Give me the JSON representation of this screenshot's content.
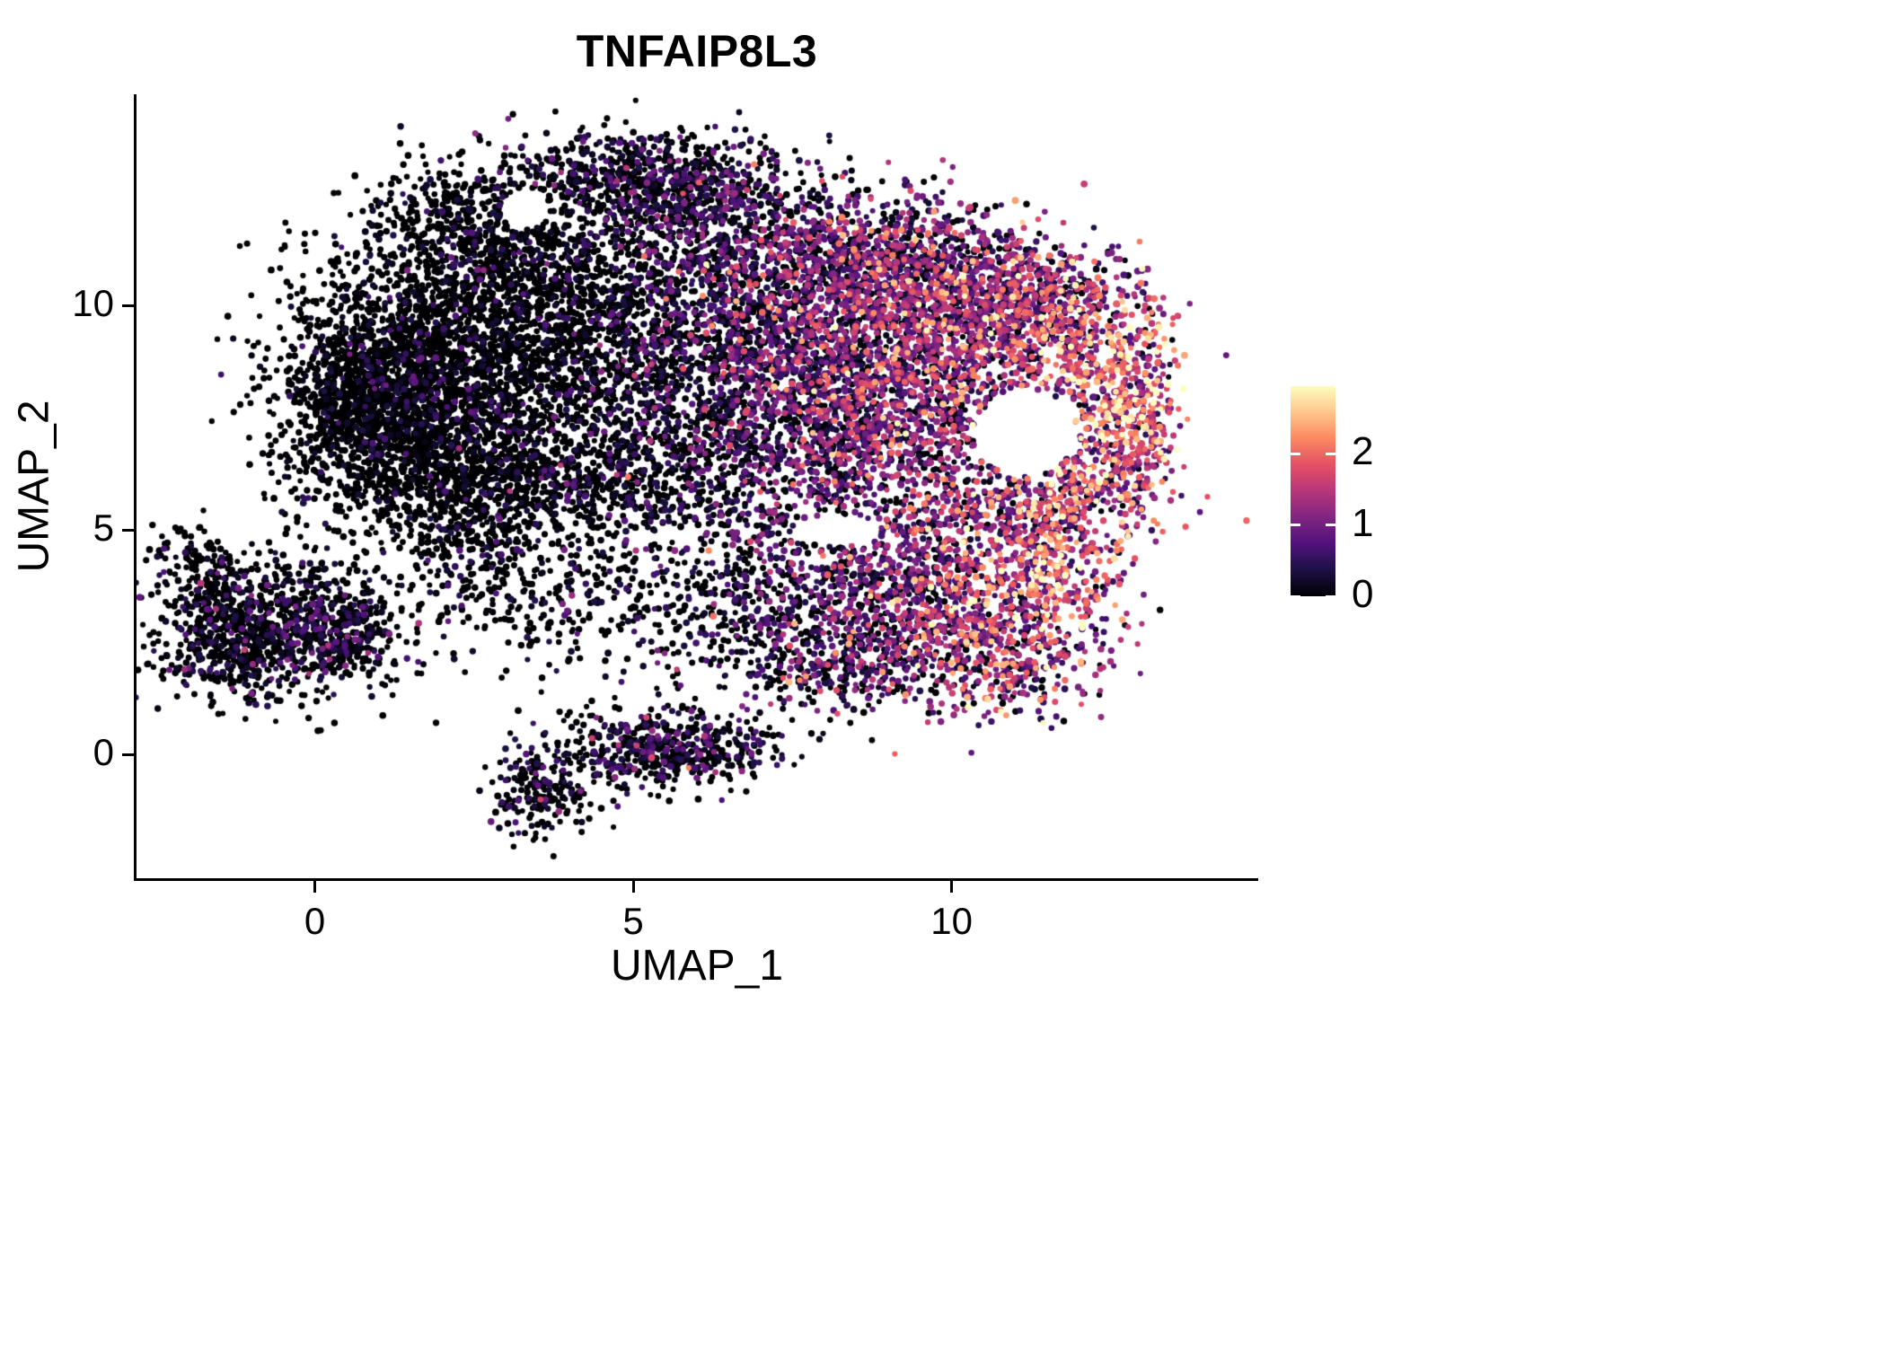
{
  "chart_data": {
    "type": "scatter",
    "title": "TNFAIP8L3",
    "xlabel": "UMAP_1",
    "ylabel": "UMAP_2",
    "xlim": [
      -2.8,
      14.8
    ],
    "ylim": [
      -2.75,
      14.7
    ],
    "grid": false,
    "background": "#ffffff",
    "axis_color": "#000000",
    "x_ticks": [
      {
        "value": 0,
        "label": "0"
      },
      {
        "value": 5,
        "label": "5"
      },
      {
        "value": 10,
        "label": "10"
      }
    ],
    "y_ticks": [
      {
        "value": 0,
        "label": "0"
      },
      {
        "value": 5,
        "label": "5"
      },
      {
        "value": 10,
        "label": "10"
      }
    ],
    "colorbar": {
      "min": 0,
      "max": 2.95,
      "position": "right",
      "ticks": [
        {
          "value": 0,
          "label": "0"
        },
        {
          "value": 1,
          "label": "1"
        },
        {
          "value": 2,
          "label": "2"
        }
      ]
    },
    "palette": {
      "name": "magma",
      "stops": [
        {
          "t": 0.0,
          "c": "#000004"
        },
        {
          "t": 0.13,
          "c": "#1d1147"
        },
        {
          "t": 0.25,
          "c": "#51127c"
        },
        {
          "t": 0.38,
          "c": "#822681"
        },
        {
          "t": 0.5,
          "c": "#b63679"
        },
        {
          "t": 0.63,
          "c": "#e65164"
        },
        {
          "t": 0.75,
          "c": "#fb8861"
        },
        {
          "t": 0.88,
          "c": "#fec98d"
        },
        {
          "t": 1.0,
          "c": "#fcfdbf"
        }
      ]
    },
    "seed": 42,
    "point_radius_min": 3.0,
    "point_radius_max": 3.9,
    "clusters": [
      {
        "x": 1.3,
        "y": 8.4,
        "sx": 0.95,
        "sy": 1.5,
        "n": 1500,
        "m": -0.5,
        "s": 0.55
      },
      {
        "x": 0.8,
        "y": 7.8,
        "sx": 0.55,
        "sy": 0.9,
        "n": 500,
        "m": -0.55,
        "s": 0.45
      },
      {
        "x": 2.6,
        "y": 7.0,
        "sx": 1.1,
        "sy": 1.1,
        "n": 800,
        "m": -0.45,
        "s": 0.5
      },
      {
        "x": 3.1,
        "y": 9.8,
        "sx": 1.1,
        "sy": 1.0,
        "n": 700,
        "m": -0.45,
        "s": 0.5
      },
      {
        "x": 4.5,
        "y": 8.4,
        "sx": 1.2,
        "sy": 1.4,
        "n": 800,
        "m": -0.3,
        "s": 0.55
      },
      {
        "x": 2.3,
        "y": 12.0,
        "sx": 0.8,
        "sy": 0.6,
        "n": 300,
        "m": -0.45,
        "s": 0.5
      },
      {
        "x": 3.1,
        "y": 11.0,
        "sx": 0.7,
        "sy": 0.6,
        "n": 250,
        "m": -0.4,
        "s": 0.5
      },
      {
        "x": 4.5,
        "y": 12.9,
        "sx": 0.9,
        "sy": 0.5,
        "n": 400,
        "m": -0.2,
        "s": 0.6
      },
      {
        "x": 6.0,
        "y": 12.7,
        "sx": 0.9,
        "sy": 0.55,
        "n": 380,
        "m": 0.1,
        "s": 0.65
      },
      {
        "x": 5.7,
        "y": 11.0,
        "sx": 1.1,
        "sy": 0.9,
        "n": 450,
        "m": -0.15,
        "s": 0.6
      },
      {
        "x": 6.4,
        "y": 9.2,
        "sx": 1.0,
        "sy": 1.1,
        "n": 500,
        "m": 0.15,
        "s": 0.65
      },
      {
        "x": 6.1,
        "y": 6.6,
        "sx": 1.2,
        "sy": 1.0,
        "n": 480,
        "m": 0.0,
        "s": 0.6
      },
      {
        "x": 4.4,
        "y": 5.8,
        "sx": 1.3,
        "sy": 0.7,
        "n": 380,
        "m": -0.3,
        "s": 0.5
      },
      {
        "x": 1.9,
        "y": 5.9,
        "sx": 0.9,
        "sy": 0.6,
        "n": 260,
        "m": -0.45,
        "s": 0.45
      },
      {
        "x": 7.9,
        "y": 9.0,
        "sx": 1.0,
        "sy": 1.3,
        "n": 850,
        "m": 0.65,
        "s": 0.75
      },
      {
        "x": 8.1,
        "y": 6.8,
        "sx": 1.0,
        "sy": 1.0,
        "n": 520,
        "m": 0.5,
        "s": 0.7
      },
      {
        "x": 9.4,
        "y": 9.4,
        "sx": 1.0,
        "sy": 1.1,
        "n": 750,
        "m": 0.9,
        "s": 0.8
      },
      {
        "x": 9.6,
        "y": 7.2,
        "sx": 0.9,
        "sy": 0.9,
        "n": 420,
        "m": 0.7,
        "s": 0.8
      },
      {
        "x": 10.8,
        "y": 9.7,
        "sx": 0.9,
        "sy": 0.8,
        "n": 480,
        "m": 1.0,
        "s": 0.8
      },
      {
        "x": 11.9,
        "y": 8.9,
        "sx": 0.75,
        "sy": 0.9,
        "n": 380,
        "m": 1.4,
        "s": 0.85
      },
      {
        "x": 12.9,
        "y": 7.5,
        "sx": 0.35,
        "sy": 0.95,
        "n": 300,
        "m": 1.7,
        "s": 0.8
      },
      {
        "x": 12.3,
        "y": 6.3,
        "sx": 0.6,
        "sy": 0.6,
        "n": 200,
        "m": 1.4,
        "s": 0.9
      },
      {
        "x": 11.5,
        "y": 5.6,
        "sx": 0.8,
        "sy": 0.6,
        "n": 220,
        "m": 1.0,
        "s": 0.9
      },
      {
        "x": 10.3,
        "y": 5.4,
        "sx": 0.9,
        "sy": 0.55,
        "n": 200,
        "m": 0.7,
        "s": 0.8
      },
      {
        "x": 7.2,
        "y": 11.4,
        "sx": 1.1,
        "sy": 0.8,
        "n": 420,
        "m": 0.35,
        "s": 0.7
      },
      {
        "x": 8.8,
        "y": 11.2,
        "sx": 1.0,
        "sy": 0.7,
        "n": 380,
        "m": 0.55,
        "s": 0.75
      },
      {
        "x": 10.2,
        "y": 10.9,
        "sx": 0.9,
        "sy": 0.6,
        "n": 280,
        "m": 0.7,
        "s": 0.8
      },
      {
        "x": 11.4,
        "y": 10.4,
        "sx": 0.7,
        "sy": 0.5,
        "n": 180,
        "m": 0.9,
        "s": 0.85
      },
      {
        "x": 9.2,
        "y": 3.1,
        "sx": 1.0,
        "sy": 0.95,
        "n": 420,
        "m": 0.55,
        "s": 0.8
      },
      {
        "x": 10.6,
        "y": 3.0,
        "sx": 0.9,
        "sy": 0.9,
        "n": 450,
        "m": 1.2,
        "s": 0.9
      },
      {
        "x": 11.6,
        "y": 4.2,
        "sx": 0.7,
        "sy": 0.8,
        "n": 300,
        "m": 1.5,
        "s": 0.9
      },
      {
        "x": 10.9,
        "y": 1.9,
        "sx": 0.8,
        "sy": 0.5,
        "n": 180,
        "m": 0.9,
        "s": 0.9
      },
      {
        "x": 8.3,
        "y": 2.0,
        "sx": 0.8,
        "sy": 0.6,
        "n": 230,
        "m": 0.3,
        "s": 0.7
      },
      {
        "x": 7.7,
        "y": 3.5,
        "sx": 0.8,
        "sy": 0.8,
        "n": 260,
        "m": 0.25,
        "s": 0.65
      },
      {
        "x": 8.9,
        "y": 4.6,
        "sx": 0.8,
        "sy": 0.5,
        "n": 160,
        "m": 0.6,
        "s": 0.8
      },
      {
        "x": 5.5,
        "y": 3.6,
        "sx": 1.5,
        "sy": 0.8,
        "n": 260,
        "m": -0.2,
        "s": 0.55
      },
      {
        "x": 3.1,
        "y": 3.4,
        "sx": 1.1,
        "sy": 0.8,
        "n": 170,
        "m": -0.35,
        "s": 0.5
      },
      {
        "x": 6.8,
        "y": 2.3,
        "sx": 1.0,
        "sy": 0.6,
        "n": 150,
        "m": -0.1,
        "s": 0.6
      },
      {
        "x": 2.4,
        "y": 4.6,
        "sx": 0.7,
        "sy": 0.4,
        "n": 110,
        "m": -0.4,
        "s": 0.45
      },
      {
        "x": -0.6,
        "y": 2.9,
        "sx": 0.85,
        "sy": 0.8,
        "n": 700,
        "m": -0.25,
        "s": 0.6
      },
      {
        "x": 0.5,
        "y": 2.6,
        "sx": 0.55,
        "sy": 0.55,
        "n": 240,
        "m": -0.25,
        "s": 0.6
      },
      {
        "x": -1.5,
        "y": 2.1,
        "sx": 0.5,
        "sy": 0.45,
        "n": 170,
        "m": -0.3,
        "s": 0.55
      },
      {
        "x": -1.9,
        "y": 4.4,
        "sx": 0.3,
        "sy": 0.4,
        "n": 70,
        "m": -0.45,
        "s": 0.4
      },
      {
        "x": -1.6,
        "y": 3.4,
        "sx": 0.4,
        "sy": 0.5,
        "n": 130,
        "m": -0.35,
        "s": 0.5
      },
      {
        "x": 3.6,
        "y": -0.7,
        "sx": 0.4,
        "sy": 0.6,
        "n": 220,
        "m": -0.1,
        "s": 0.6
      },
      {
        "x": 4.9,
        "y": 0.2,
        "sx": 0.55,
        "sy": 0.4,
        "n": 210,
        "m": 0.0,
        "s": 0.6
      },
      {
        "x": 6.3,
        "y": 0.2,
        "sx": 0.55,
        "sy": 0.45,
        "n": 190,
        "m": -0.05,
        "s": 0.6
      },
      {
        "x": 5.6,
        "y": -0.1,
        "sx": 0.45,
        "sy": 0.3,
        "n": 110,
        "m": -0.1,
        "s": 0.55
      }
    ],
    "holes": [
      {
        "x": 11.15,
        "y": 7.15,
        "rx": 0.8,
        "ry": 0.95
      },
      {
        "x": 8.2,
        "y": 5.0,
        "rx": 0.7,
        "ry": 0.35
      },
      {
        "x": 3.3,
        "y": 12.15,
        "rx": 0.4,
        "ry": 0.45
      }
    ]
  }
}
